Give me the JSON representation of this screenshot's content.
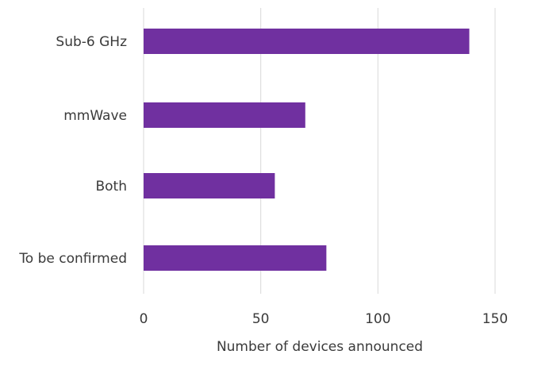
{
  "chart_data": {
    "type": "bar",
    "orientation": "horizontal",
    "categories": [
      "Sub-6 GHz",
      "mmWave",
      "Both",
      "To be confirmed"
    ],
    "values": [
      139,
      69,
      56,
      78
    ],
    "xlabel": "Number of devices announced",
    "ylabel": "",
    "xlim": [
      0,
      150
    ],
    "xticks": [
      0,
      50,
      100,
      150
    ],
    "grid": "vertical",
    "color": "#7030a0"
  }
}
